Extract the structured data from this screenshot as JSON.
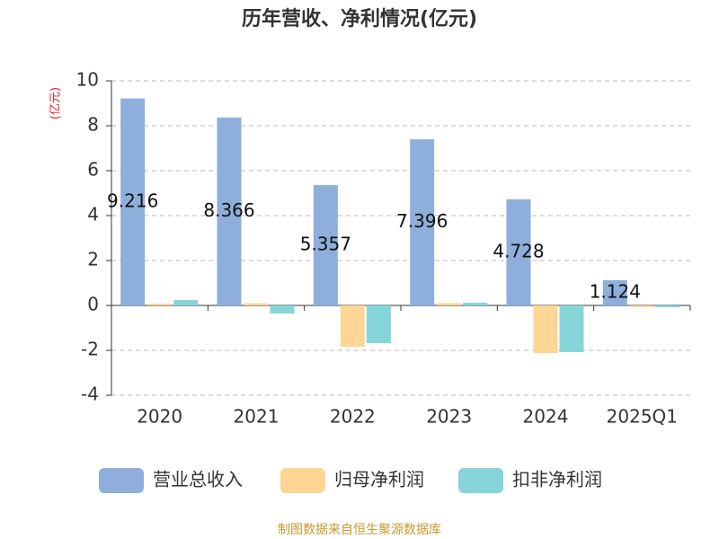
{
  "chart_data": {
    "type": "bar",
    "title": "历年营收、净利情况(亿元)",
    "y_label": "(亿元)",
    "categories": [
      "2020",
      "2021",
      "2022",
      "2023",
      "2024",
      "2025Q1"
    ],
    "series": [
      {
        "name": "营业总收入",
        "color": "#8eaedb",
        "values": [
          9.216,
          8.366,
          5.357,
          7.396,
          4.728,
          1.124
        ]
      },
      {
        "name": "归母净利润",
        "color": "#fdd595",
        "values": [
          0.08,
          0.1,
          -1.84,
          0.1,
          -2.12,
          -0.08
        ]
      },
      {
        "name": "扣非净利润",
        "color": "#86d5d8",
        "values": [
          0.24,
          -0.36,
          -1.68,
          0.12,
          -2.08,
          -0.08
        ]
      }
    ],
    "ylim": [
      -4,
      10
    ],
    "yticks": [
      -4,
      -2,
      0,
      2,
      4,
      6,
      8,
      10
    ],
    "grid": true,
    "source": "制图数据来自恒生聚源数据库"
  }
}
